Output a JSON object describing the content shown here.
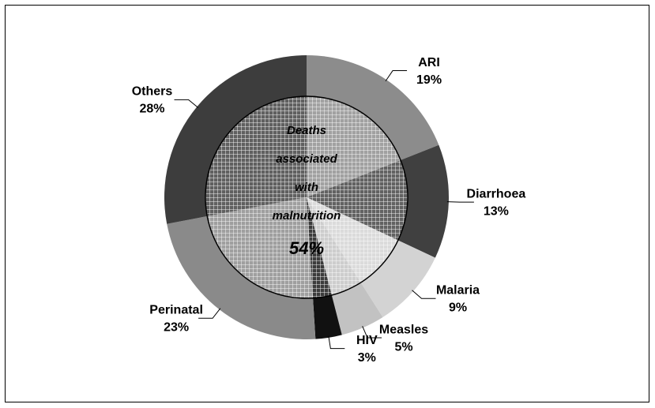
{
  "chart_data": {
    "type": "pie",
    "categories": [
      "ARI",
      "Diarrhoea",
      "Malaria",
      "Measles",
      "HIV",
      "Perinatal",
      "Others"
    ],
    "values": [
      19,
      13,
      9,
      5,
      3,
      23,
      28
    ],
    "value_labels": [
      "19%",
      "13%",
      "9%",
      "5%",
      "3%",
      "23%",
      "28%"
    ],
    "colors": [
      "#8c8c8c",
      "#404040",
      "#d3d3d3",
      "#c2c2c2",
      "#111111",
      "#8a8a8a",
      "#3d3d3d"
    ],
    "annotation": {
      "lines": [
        "Deaths",
        "associated",
        "with",
        "malnutrition"
      ],
      "value_text": "54%"
    }
  }
}
